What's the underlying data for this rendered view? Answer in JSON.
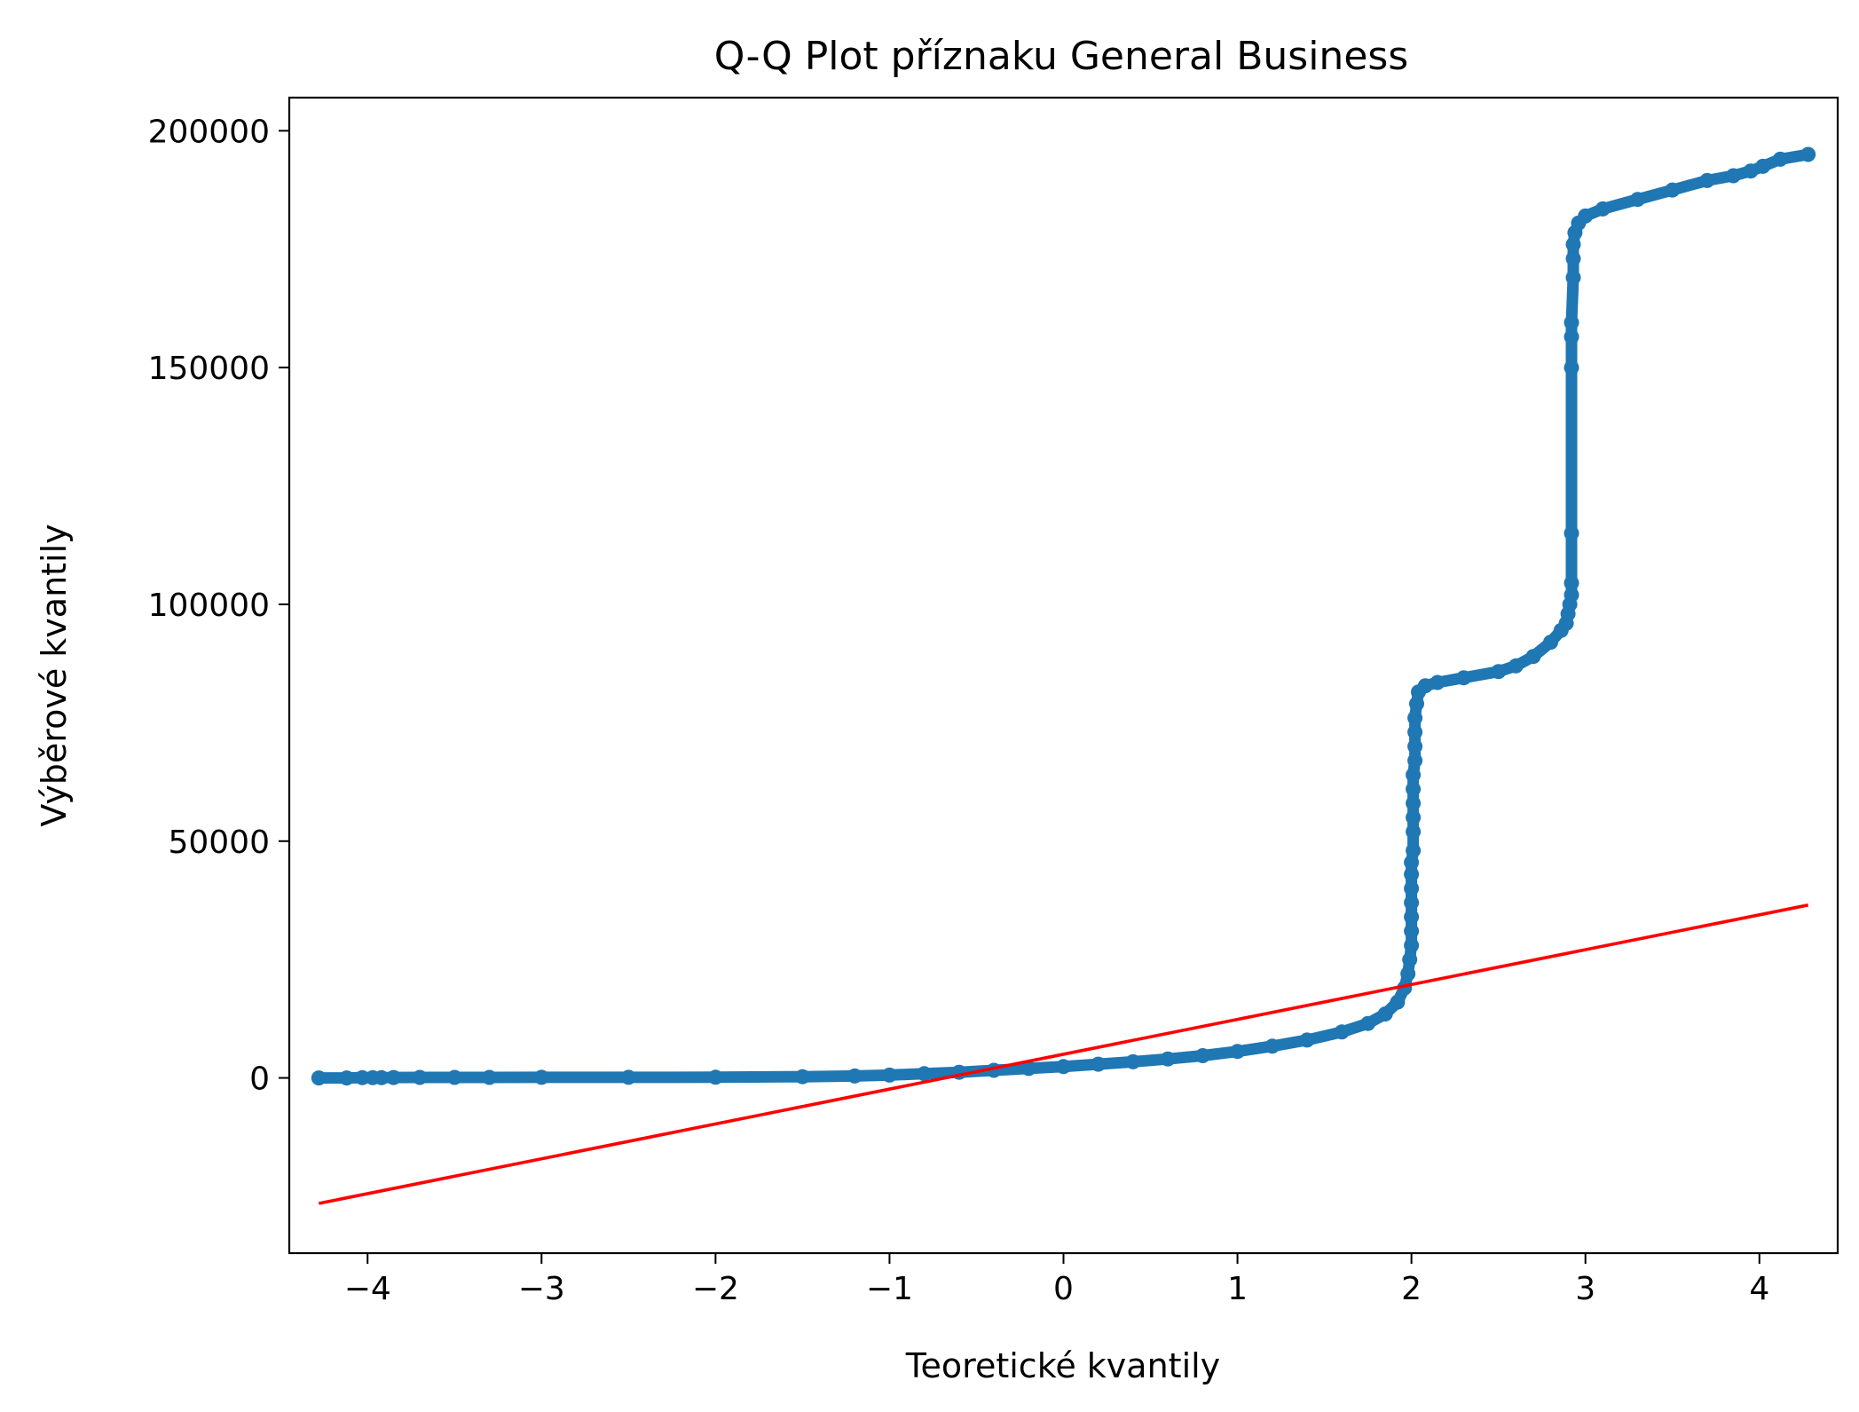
{
  "chart_data": {
    "type": "scatter",
    "title": "Q-Q Plot příznaku General Business",
    "xlabel": "Teoretické kvantily",
    "ylabel": "Výběrové kvantily",
    "xlim": [
      -4.45,
      4.45
    ],
    "ylim": [
      -37000,
      207000
    ],
    "xticks": [
      -4,
      -3,
      -2,
      -1,
      0,
      1,
      2,
      3,
      4
    ],
    "xtick_labels": [
      "−4",
      "−3",
      "−2",
      "−1",
      "0",
      "1",
      "2",
      "3",
      "4"
    ],
    "yticks": [
      0,
      50000,
      100000,
      150000,
      200000
    ],
    "ytick_labels": [
      "0",
      "50000",
      "100000",
      "150000",
      "200000"
    ],
    "grid": false,
    "legend": "none",
    "colors": {
      "points": "#1f77b4",
      "fit_line": "#ff0000"
    },
    "series": [
      {
        "kind": "points",
        "points": [
          [
            -4.28,
            0
          ],
          [
            -4.12,
            0
          ],
          [
            -4.03,
            50
          ],
          [
            -3.97,
            50
          ],
          [
            -3.92,
            50
          ],
          [
            -3.85,
            80
          ],
          [
            -3.7,
            100
          ],
          [
            -3.5,
            100
          ],
          [
            -3.3,
            110
          ],
          [
            -3.0,
            120
          ],
          [
            -2.5,
            130
          ],
          [
            -2.0,
            150
          ],
          [
            -1.5,
            250
          ],
          [
            -1.2,
            400
          ],
          [
            -1.0,
            600
          ],
          [
            -0.8,
            900
          ],
          [
            -0.6,
            1200
          ],
          [
            -0.4,
            1600
          ],
          [
            -0.2,
            2000
          ],
          [
            0.0,
            2400
          ],
          [
            0.2,
            2900
          ],
          [
            0.4,
            3400
          ],
          [
            0.6,
            4000
          ],
          [
            0.8,
            4700
          ],
          [
            1.0,
            5600
          ],
          [
            1.2,
            6700
          ],
          [
            1.4,
            8000
          ],
          [
            1.6,
            9700
          ],
          [
            1.75,
            11500
          ],
          [
            1.85,
            13500
          ],
          [
            1.92,
            16000
          ],
          [
            1.96,
            19000
          ],
          [
            1.98,
            22000
          ],
          [
            1.99,
            25000
          ],
          [
            2.0,
            28000
          ],
          [
            2.0,
            31000
          ],
          [
            2.0,
            34000
          ],
          [
            2.0,
            37000
          ],
          [
            2.0,
            40000
          ],
          [
            2.0,
            43000
          ],
          [
            2.0,
            45500
          ],
          [
            2.01,
            48000
          ],
          [
            2.01,
            52000
          ],
          [
            2.01,
            55000
          ],
          [
            2.01,
            58000
          ],
          [
            2.01,
            61000
          ],
          [
            2.01,
            64000
          ],
          [
            2.02,
            67000
          ],
          [
            2.02,
            70000
          ],
          [
            2.02,
            73000
          ],
          [
            2.02,
            76000
          ],
          [
            2.03,
            79000
          ],
          [
            2.04,
            81500
          ],
          [
            2.08,
            82800
          ],
          [
            2.15,
            83500
          ],
          [
            2.3,
            84500
          ],
          [
            2.5,
            85800
          ],
          [
            2.6,
            87000
          ],
          [
            2.7,
            89000
          ],
          [
            2.8,
            92000
          ],
          [
            2.86,
            94500
          ],
          [
            2.89,
            96000
          ],
          [
            2.9,
            98000
          ],
          [
            2.91,
            100000
          ],
          [
            2.92,
            102000
          ],
          [
            2.92,
            104500
          ],
          [
            2.92,
            115000
          ],
          [
            2.92,
            150000
          ],
          [
            2.92,
            156500
          ],
          [
            2.92,
            159500
          ],
          [
            2.93,
            169000
          ],
          [
            2.93,
            173000
          ],
          [
            2.93,
            176000
          ],
          [
            2.94,
            178500
          ],
          [
            2.96,
            180500
          ],
          [
            3.0,
            182000
          ],
          [
            3.1,
            183500
          ],
          [
            3.3,
            185500
          ],
          [
            3.5,
            187500
          ],
          [
            3.7,
            189500
          ],
          [
            3.85,
            190500
          ],
          [
            3.95,
            191500
          ],
          [
            4.02,
            192500
          ],
          [
            4.12,
            194000
          ],
          [
            4.28,
            195000
          ]
        ]
      },
      {
        "kind": "fit-line",
        "points": [
          [
            -4.28,
            -26500
          ],
          [
            4.28,
            36500
          ]
        ]
      }
    ]
  }
}
